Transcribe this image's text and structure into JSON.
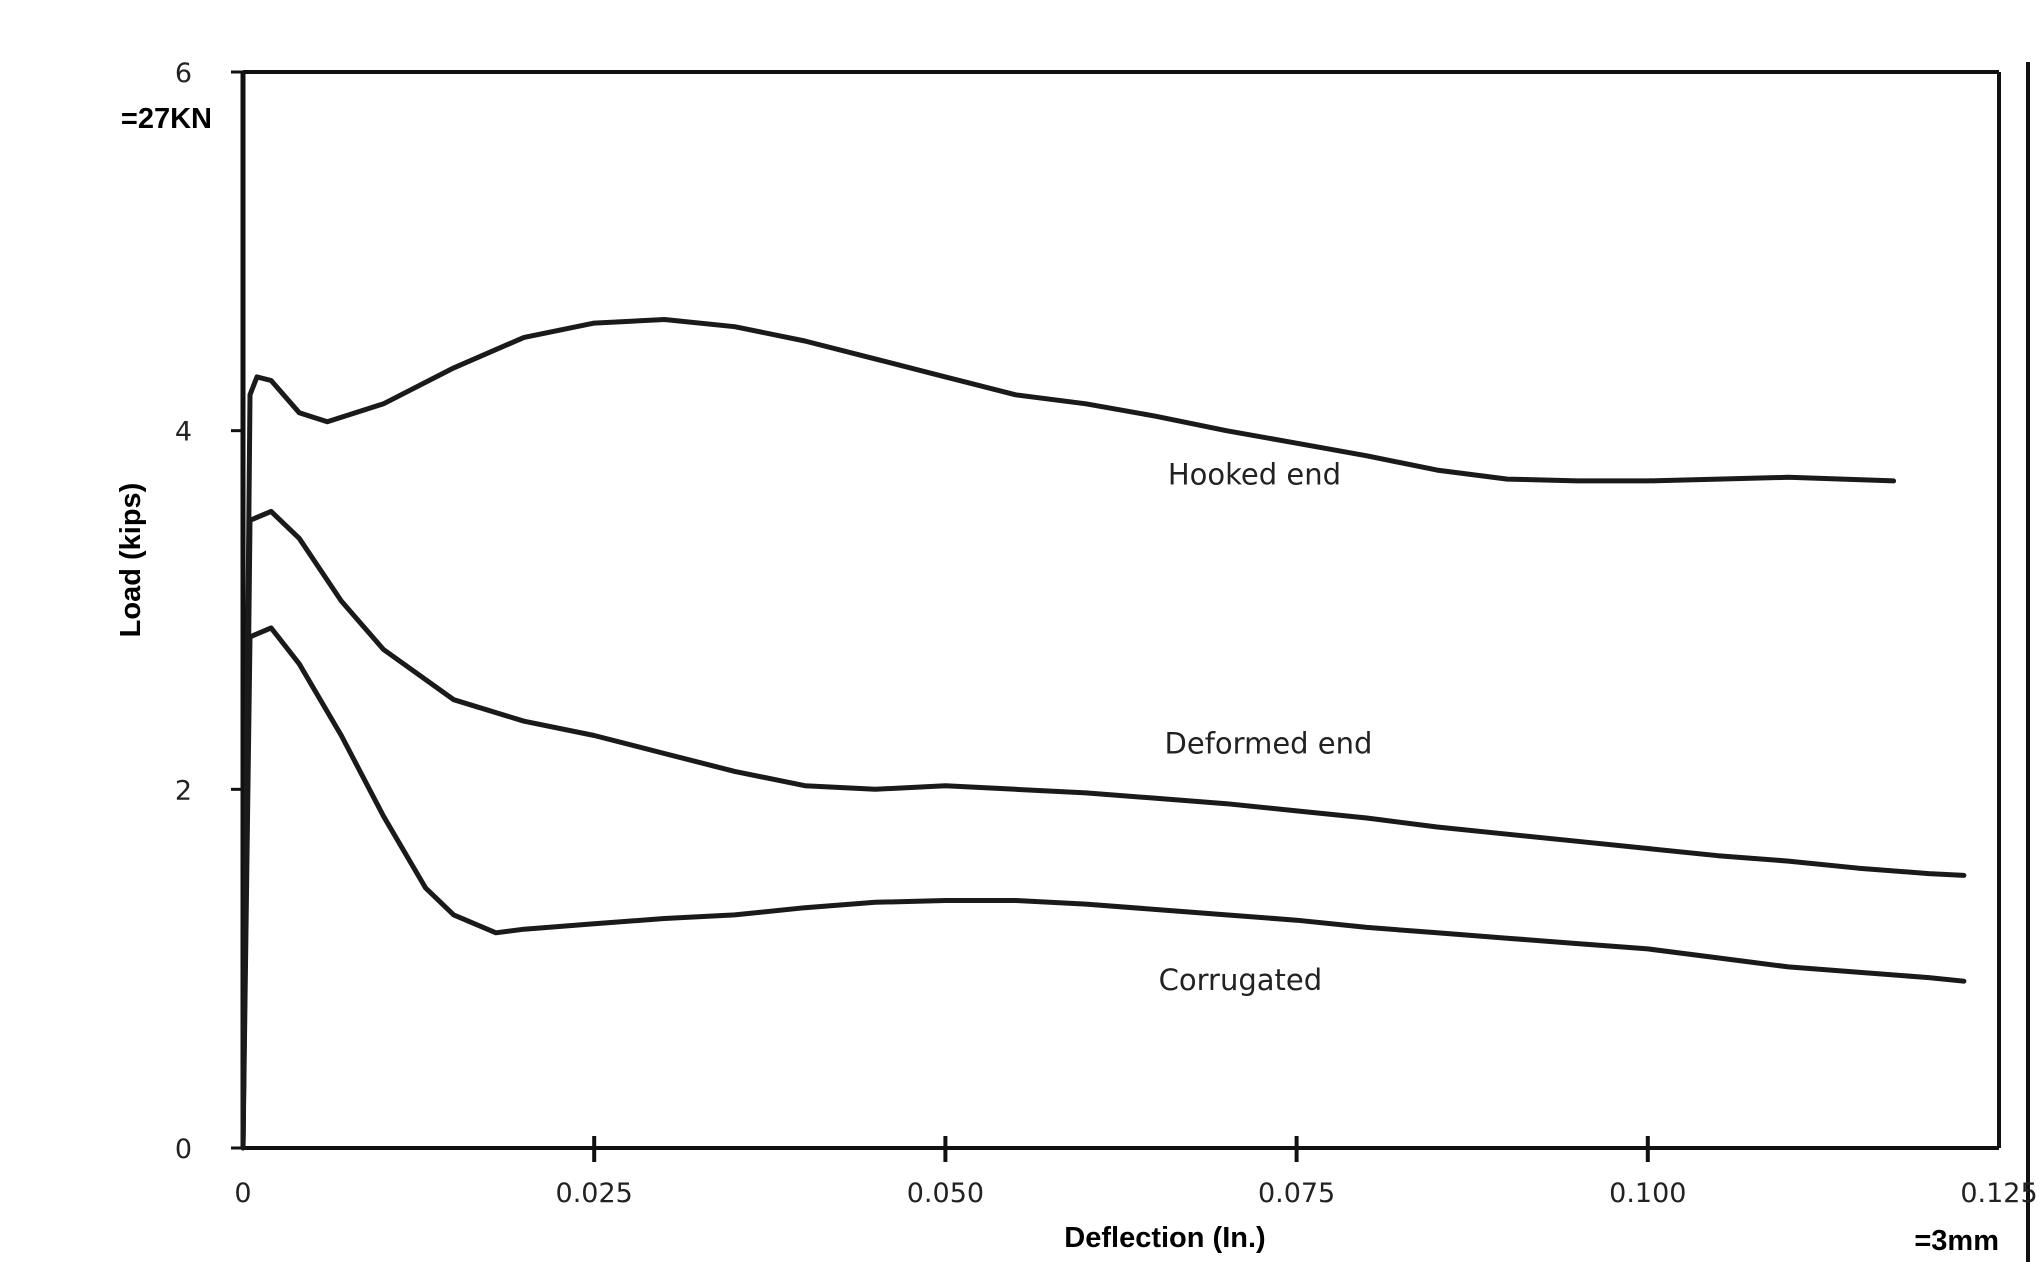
{
  "chart_data": {
    "type": "line",
    "title": "",
    "xlabel": "Deflection (In.)",
    "ylabel": "Load (kips)",
    "xlim": [
      0,
      0.125
    ],
    "ylim": [
      0,
      6
    ],
    "x_ticks": [
      "0",
      "0.025",
      "0.050",
      "0.075",
      "0.100",
      "0.125"
    ],
    "y_ticks": [
      "0",
      "2",
      "4",
      "6"
    ],
    "y_note": "=27KN",
    "x_note": "=3mm",
    "grid": false,
    "legend": "none",
    "series": [
      {
        "name": "Hooked end",
        "x": [
          0,
          0.0005,
          0.001,
          0.002,
          0.004,
          0.006,
          0.01,
          0.015,
          0.02,
          0.025,
          0.03,
          0.035,
          0.04,
          0.045,
          0.05,
          0.055,
          0.06,
          0.065,
          0.07,
          0.075,
          0.08,
          0.085,
          0.09,
          0.095,
          0.1,
          0.105,
          0.11,
          0.1175
        ],
        "y": [
          0,
          4.2,
          4.3,
          4.28,
          4.1,
          4.05,
          4.15,
          4.35,
          4.52,
          4.6,
          4.62,
          4.58,
          4.5,
          4.4,
          4.3,
          4.2,
          4.15,
          4.08,
          4.0,
          3.93,
          3.86,
          3.78,
          3.73,
          3.72,
          3.72,
          3.73,
          3.74,
          3.72
        ]
      },
      {
        "name": "Deformed end",
        "x": [
          0,
          0.0005,
          0.002,
          0.004,
          0.007,
          0.01,
          0.015,
          0.02,
          0.025,
          0.03,
          0.035,
          0.04,
          0.045,
          0.05,
          0.055,
          0.06,
          0.065,
          0.07,
          0.075,
          0.08,
          0.085,
          0.09,
          0.095,
          0.1,
          0.105,
          0.11,
          0.115,
          0.12,
          0.1225
        ],
        "y": [
          0,
          3.5,
          3.55,
          3.4,
          3.05,
          2.78,
          2.5,
          2.38,
          2.3,
          2.2,
          2.1,
          2.02,
          2.0,
          2.02,
          2.0,
          1.98,
          1.95,
          1.92,
          1.88,
          1.84,
          1.79,
          1.75,
          1.71,
          1.67,
          1.63,
          1.6,
          1.56,
          1.53,
          1.52
        ]
      },
      {
        "name": "Corrugated",
        "x": [
          0,
          0.0005,
          0.002,
          0.004,
          0.007,
          0.01,
          0.013,
          0.015,
          0.018,
          0.02,
          0.025,
          0.03,
          0.035,
          0.04,
          0.045,
          0.05,
          0.055,
          0.06,
          0.065,
          0.07,
          0.075,
          0.08,
          0.085,
          0.09,
          0.095,
          0.1,
          0.105,
          0.11,
          0.115,
          0.12,
          0.1225
        ],
        "y": [
          0,
          2.85,
          2.9,
          2.7,
          2.3,
          1.85,
          1.45,
          1.3,
          1.2,
          1.22,
          1.25,
          1.28,
          1.3,
          1.34,
          1.37,
          1.38,
          1.38,
          1.36,
          1.33,
          1.3,
          1.27,
          1.23,
          1.2,
          1.17,
          1.14,
          1.11,
          1.06,
          1.01,
          0.98,
          0.95,
          0.93
        ]
      }
    ]
  }
}
